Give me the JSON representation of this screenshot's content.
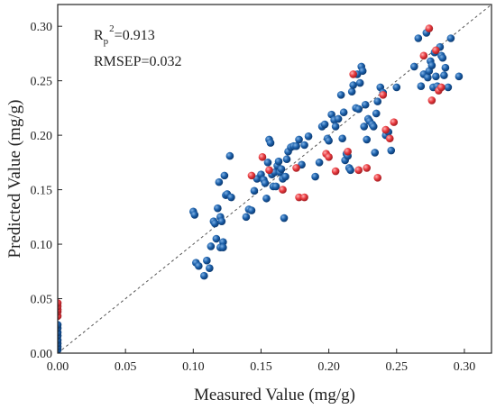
{
  "chart_data": {
    "type": "scatter",
    "title": "",
    "xlabel": "Measured Value (mg/g)",
    "ylabel": "Predicted Value (mg/g)",
    "xlim": [
      0,
      0.32
    ],
    "ylim": [
      0,
      0.32
    ],
    "x_ticks": [
      "0.00",
      "0.05",
      "0.10",
      "0.15",
      "0.20",
      "0.25",
      "0.30"
    ],
    "y_ticks": [
      "0.00",
      "0.05",
      "0.10",
      "0.15",
      "0.20",
      "0.25",
      "0.30"
    ],
    "grid": false,
    "legend": "none",
    "annotations": {
      "r_base": "R",
      "r_sub": "p",
      "r_sup": "2",
      "r_value": "=0.913",
      "rmsep": "RMSEP=0.032"
    },
    "reference_line": {
      "style": "dashed",
      "from": [
        0,
        0
      ],
      "to": [
        0.32,
        0.32
      ],
      "color": "#555555"
    },
    "colors": {
      "calibration": "#1a5ea8",
      "prediction": "#e8383d"
    },
    "series": [
      {
        "color_key": "calibration",
        "x": [
          0,
          0,
          0,
          0,
          0,
          0,
          0,
          0,
          0.1,
          0.101,
          0.102,
          0.104,
          0.108,
          0.11,
          0.112,
          0.113,
          0.115,
          0.116,
          0.117,
          0.118,
          0.119,
          0.12,
          0.12,
          0.121,
          0.122,
          0.122,
          0.123,
          0.124,
          0.125,
          0.127,
          0.128,
          0.139,
          0.141,
          0.143,
          0.145,
          0.147,
          0.15,
          0.152,
          0.153,
          0.154,
          0.155,
          0.156,
          0.157,
          0.158,
          0.159,
          0.16,
          0.161,
          0.162,
          0.163,
          0.164,
          0.165,
          0.166,
          0.167,
          0.168,
          0.169,
          0.17,
          0.172,
          0.174,
          0.176,
          0.178,
          0.18,
          0.182,
          0.185,
          0.19,
          0.193,
          0.195,
          0.197,
          0.199,
          0.2,
          0.202,
          0.204,
          0.205,
          0.207,
          0.209,
          0.21,
          0.211,
          0.212,
          0.213,
          0.214,
          0.215,
          0.216,
          0.217,
          0.218,
          0.22,
          0.221,
          0.222,
          0.223,
          0.224,
          0.225,
          0.226,
          0.227,
          0.228,
          0.229,
          0.23,
          0.232,
          0.233,
          0.234,
          0.235,
          0.236,
          0.238,
          0.24,
          0.242,
          0.244,
          0.246,
          0.25,
          0.263,
          0.266,
          0.268,
          0.27,
          0.272,
          0.273,
          0.274,
          0.275,
          0.276,
          0.277,
          0.278,
          0.279,
          0.28,
          0.282,
          0.283,
          0.284,
          0.285,
          0.286,
          0.288,
          0.29,
          0.296
        ],
        "y": [
          0.003,
          0.006,
          0.009,
          0.012,
          0.016,
          0.019,
          0.023,
          0.026,
          0.13,
          0.127,
          0.083,
          0.08,
          0.071,
          0.085,
          0.078,
          0.098,
          0.121,
          0.119,
          0.105,
          0.133,
          0.157,
          0.125,
          0.097,
          0.121,
          0.102,
          0.097,
          0.163,
          0.145,
          0.146,
          0.181,
          0.143,
          0.125,
          0.132,
          0.131,
          0.149,
          0.16,
          0.164,
          0.159,
          0.156,
          0.142,
          0.175,
          0.196,
          0.193,
          0.164,
          0.153,
          0.166,
          0.153,
          0.172,
          0.176,
          0.166,
          0.169,
          0.16,
          0.124,
          0.162,
          0.178,
          0.185,
          0.189,
          0.19,
          0.19,
          0.196,
          0.173,
          0.191,
          0.199,
          0.162,
          0.175,
          0.208,
          0.21,
          0.197,
          0.195,
          0.219,
          0.214,
          0.208,
          0.215,
          0.237,
          0.197,
          0.221,
          0.177,
          0.183,
          0.181,
          0.17,
          0.168,
          0.24,
          0.246,
          0.225,
          0.256,
          0.224,
          0.248,
          0.263,
          0.259,
          0.208,
          0.228,
          0.196,
          0.215,
          0.213,
          0.21,
          0.208,
          0.184,
          0.22,
          0.231,
          0.244,
          0.239,
          0.2,
          0.203,
          0.186,
          0.244,
          0.263,
          0.289,
          0.245,
          0.256,
          0.294,
          0.253,
          0.259,
          0.268,
          0.264,
          0.244,
          0.276,
          0.254,
          0.245,
          0.281,
          0.273,
          0.271,
          0.255,
          0.262,
          0.244,
          0.289,
          0.254
        ]
      },
      {
        "color_key": "prediction",
        "x": [
          0,
          0,
          0,
          0,
          0,
          0.143,
          0.151,
          0.156,
          0.166,
          0.176,
          0.178,
          0.182,
          0.198,
          0.2,
          0.205,
          0.214,
          0.218,
          0.222,
          0.228,
          0.236,
          0.24,
          0.242,
          0.245,
          0.248,
          0.27,
          0.274,
          0.276,
          0.279,
          0.281,
          0.283
        ],
        "y": [
          0.034,
          0.038,
          0.04,
          0.043,
          0.046,
          0.163,
          0.18,
          0.168,
          0.15,
          0.17,
          0.143,
          0.143,
          0.183,
          0.18,
          0.167,
          0.185,
          0.256,
          0.168,
          0.17,
          0.161,
          0.237,
          0.205,
          0.197,
          0.212,
          0.273,
          0.298,
          0.232,
          0.278,
          0.241,
          0.244
        ]
      }
    ]
  }
}
